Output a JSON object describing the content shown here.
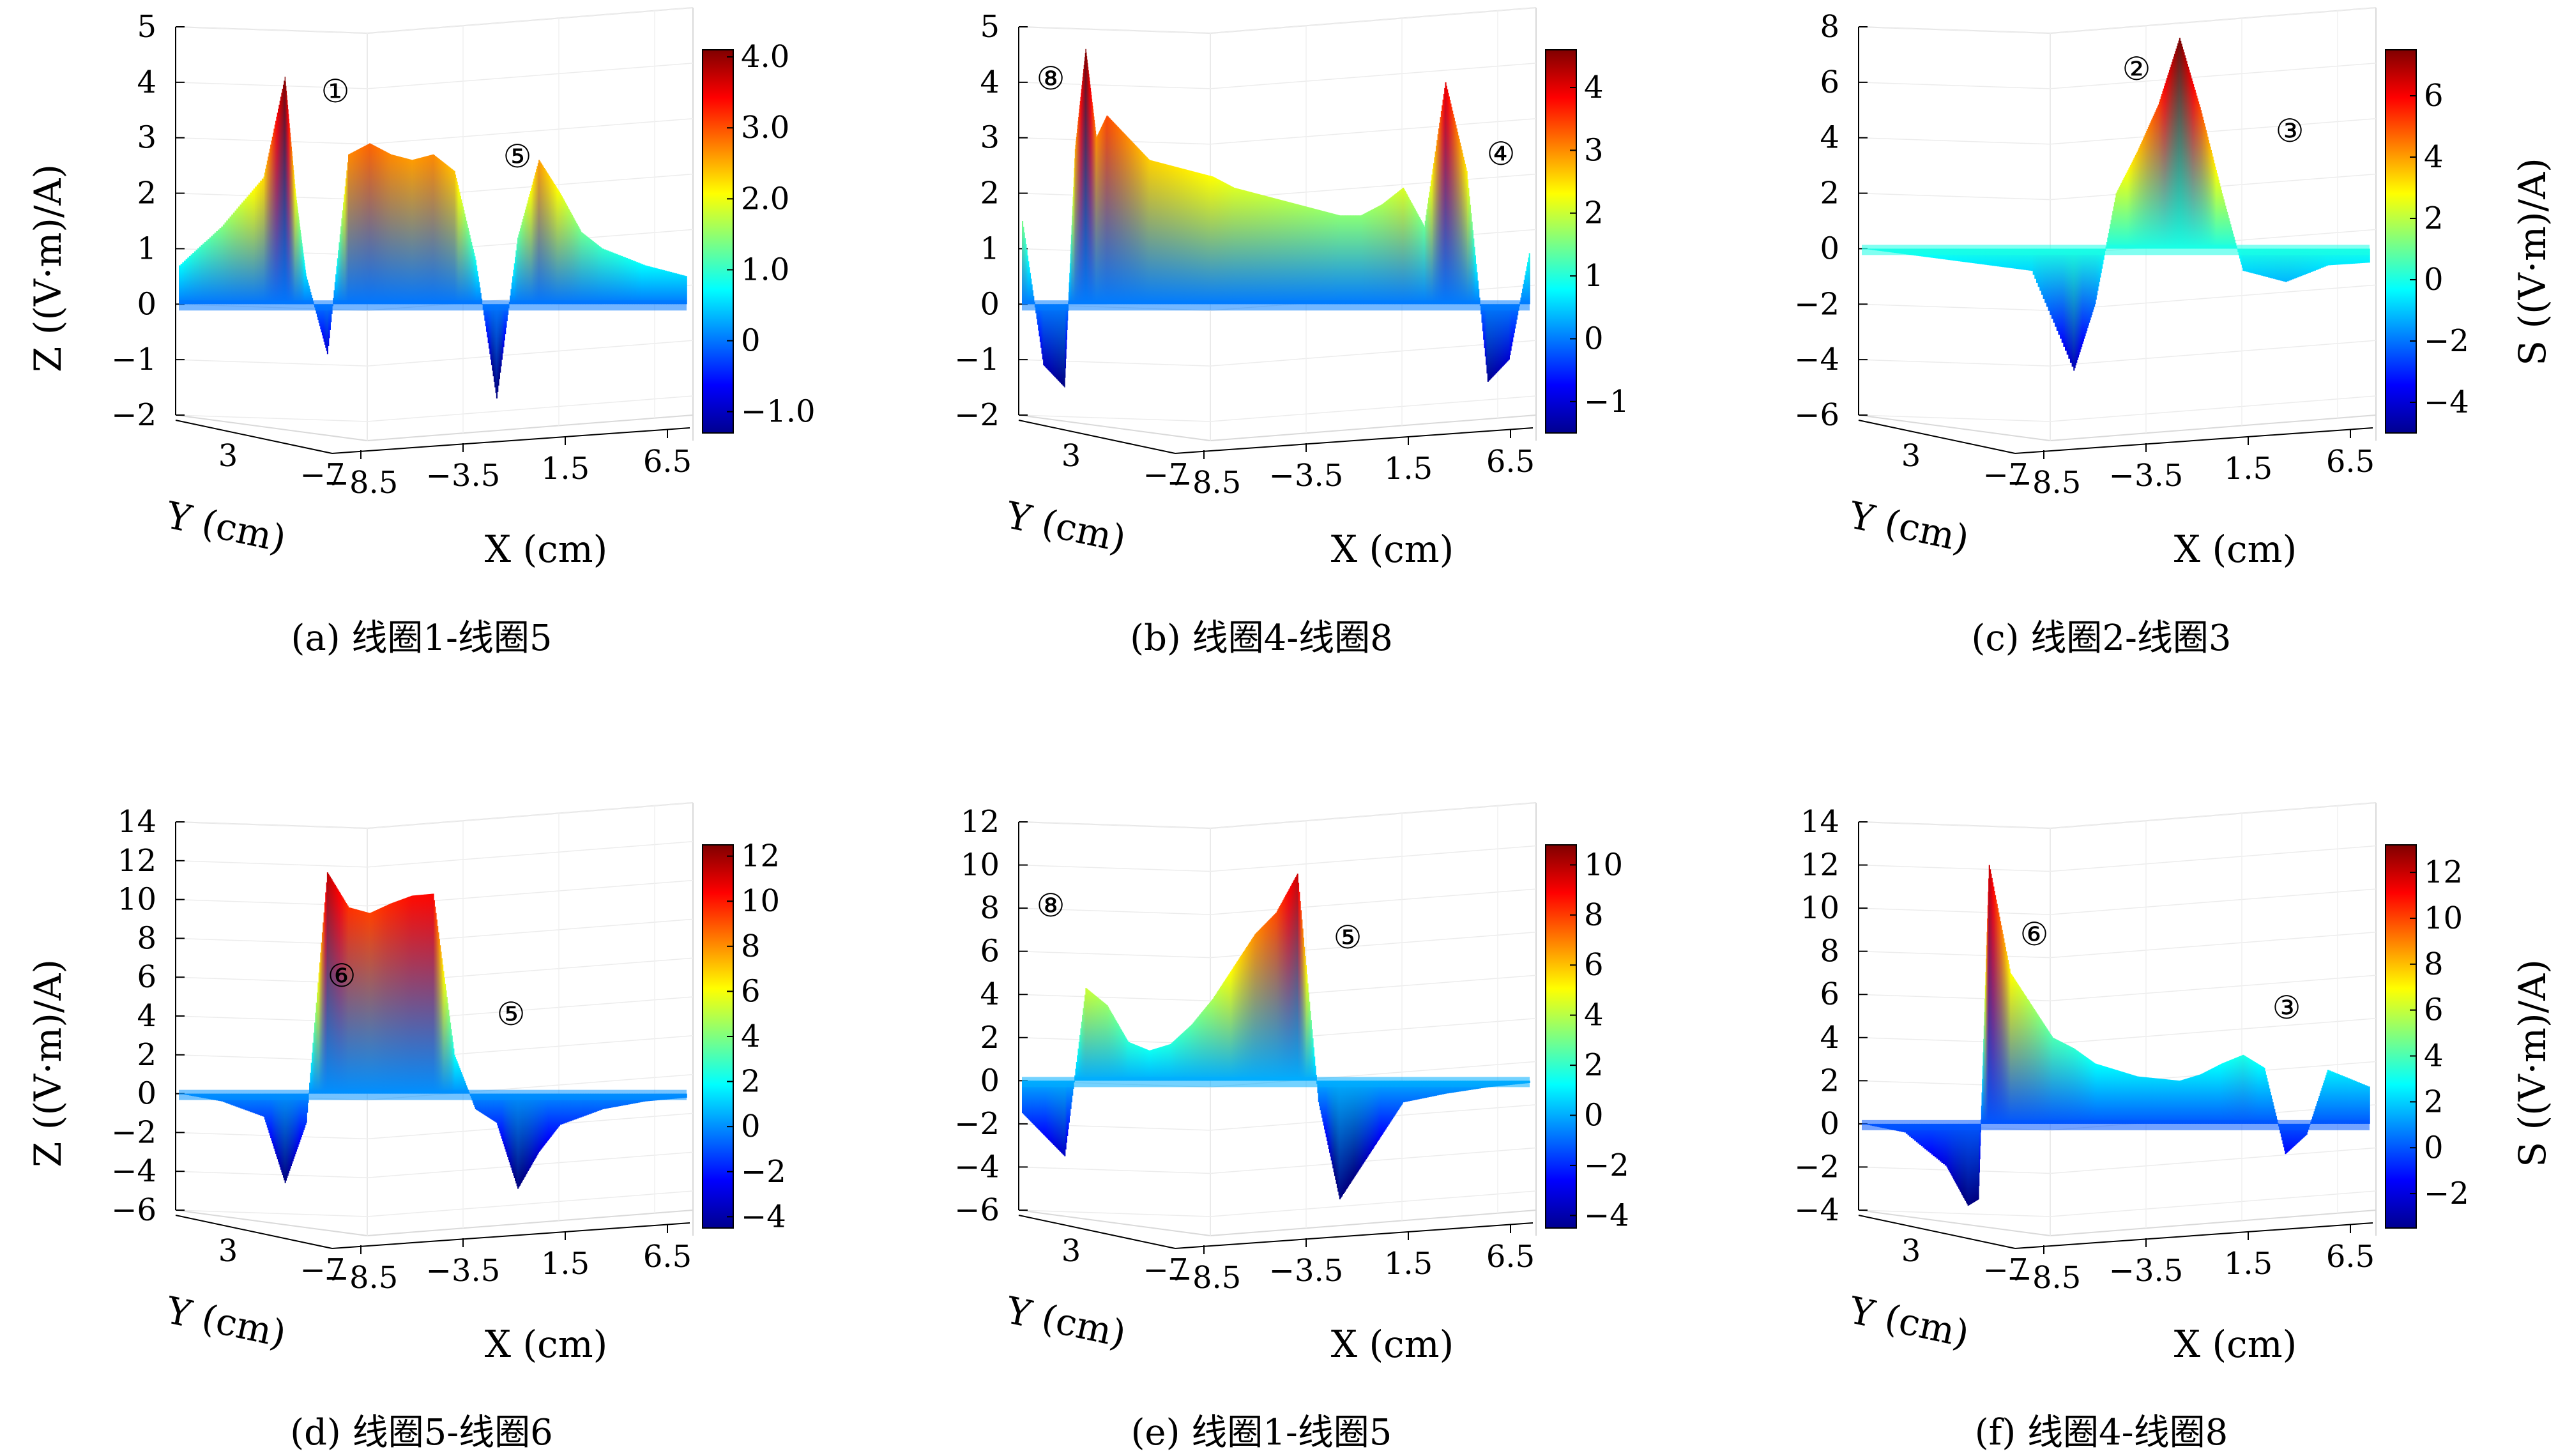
{
  "figure": {
    "panels": [
      {
        "caption": "(a) 线圈1-线圈5",
        "zlabel": "Z ((V·m)/A)",
        "clabel": "",
        "xlabel": "X (cm)",
        "ylabel": "Y (cm)",
        "colorbar_ticks": [
          "4.0",
          "3.0",
          "2.0",
          "1.0",
          "0",
          "−1.0"
        ],
        "markers": [
          "①",
          "⑤"
        ]
      },
      {
        "caption": "(b) 线圈4-线圈8",
        "zlabel": "",
        "clabel": "",
        "xlabel": "X (cm)",
        "ylabel": "Y (cm)",
        "colorbar_ticks": [
          "4",
          "3",
          "2",
          "1",
          "0",
          "−1"
        ],
        "markers": [
          "⑧",
          "④"
        ]
      },
      {
        "caption": "(c) 线圈2-线圈3",
        "zlabel": "",
        "clabel": "S ((V·m)/A)",
        "xlabel": "X (cm)",
        "ylabel": "Y (cm)",
        "colorbar_ticks": [
          "6",
          "4",
          "2",
          "0",
          "−2",
          "−4"
        ],
        "markers": [
          "②",
          "③"
        ]
      },
      {
        "caption": "(d) 线圈5-线圈6",
        "zlabel": "Z ((V·m)/A)",
        "clabel": "",
        "xlabel": "X (cm)",
        "ylabel": "Y (cm)",
        "colorbar_ticks": [
          "12",
          "10",
          "8",
          "6",
          "4",
          "2",
          "0",
          "−2",
          "−4"
        ],
        "markers": [
          "⑥",
          "⑤"
        ]
      },
      {
        "caption": "(e) 线圈1-线圈5",
        "zlabel": "",
        "clabel": "",
        "xlabel": "X (cm)",
        "ylabel": "Y (cm)",
        "colorbar_ticks": [
          "10",
          "8",
          "6",
          "4",
          "2",
          "0",
          "−2",
          "−4"
        ],
        "markers": [
          "⑧",
          "⑤"
        ]
      },
      {
        "caption": "(f) 线圈4-线圈8",
        "zlabel": "",
        "clabel": "S ((V·m)/A)",
        "xlabel": "X (cm)",
        "ylabel": "Y (cm)",
        "colorbar_ticks": [
          "12",
          "10",
          "8",
          "6",
          "4",
          "2",
          "0",
          "−2"
        ],
        "markers": [
          "⑥",
          "③"
        ]
      }
    ]
  },
  "chart_data": [
    {
      "type": "surface3d",
      "title": "(a) 线圈1-线圈5",
      "xlabel": "X (cm)",
      "ylabel": "Y (cm)",
      "zlabel": "Z ((V·m)/A)",
      "x_ticks": [
        "-8.5",
        "-3.5",
        "1.5",
        "6.5"
      ],
      "y_ticks": [
        "3",
        "-7"
      ],
      "z_ticks": [
        "5",
        "4",
        "3",
        "2",
        "1",
        "0",
        "-1",
        "-2"
      ],
      "zlim": [
        -2,
        5
      ],
      "colorbar": {
        "min": -1.3,
        "max": 4.1,
        "ticks": [
          4.0,
          3.0,
          2.0,
          1.0,
          0,
          -1.0
        ]
      },
      "profile_x": [
        -12,
        -10,
        -8,
        -7,
        -6.5,
        -6,
        -5,
        -4,
        -3,
        -2,
        -1,
        0,
        1,
        2,
        3,
        4,
        5,
        6,
        7,
        8,
        10,
        12
      ],
      "profile_z": [
        0.7,
        1.4,
        2.3,
        4.1,
        2.0,
        0.5,
        -0.9,
        2.7,
        2.9,
        2.7,
        2.6,
        2.7,
        2.4,
        0.8,
        -1.7,
        1.2,
        2.6,
        2.0,
        1.3,
        1.0,
        0.7,
        0.5
      ]
    },
    {
      "type": "surface3d",
      "title": "(b) 线圈4-线圈8",
      "xlabel": "X (cm)",
      "ylabel": "Y (cm)",
      "zlabel": "",
      "x_ticks": [
        "-8.5",
        "-3.5",
        "1.5",
        "6.5"
      ],
      "y_ticks": [
        "3",
        "-7"
      ],
      "z_ticks": [
        "5",
        "4",
        "3",
        "2",
        "1",
        "0",
        "-1",
        "-2"
      ],
      "zlim": [
        -2,
        5
      ],
      "colorbar": {
        "min": -1.5,
        "max": 4.6,
        "ticks": [
          4,
          3,
          2,
          1,
          0,
          -1
        ]
      },
      "profile_x": [
        -12,
        -11,
        -10,
        -9.5,
        -9,
        -8.5,
        -8,
        -7,
        -6,
        -5,
        -4,
        -3,
        -2,
        -1,
        0,
        1,
        2,
        3,
        4,
        5,
        6,
        7,
        8,
        9,
        10,
        11,
        12
      ],
      "profile_z": [
        1.5,
        -1.1,
        -1.5,
        2.8,
        4.6,
        3.0,
        3.4,
        3.0,
        2.6,
        2.5,
        2.4,
        2.3,
        2.1,
        2.0,
        1.9,
        1.8,
        1.7,
        1.6,
        1.6,
        1.8,
        2.1,
        1.4,
        4.0,
        2.4,
        -1.4,
        -1.0,
        1.0
      ]
    },
    {
      "type": "surface3d",
      "title": "(c) 线圈2-线圈3",
      "xlabel": "X (cm)",
      "ylabel": "Y (cm)",
      "zlabel": "S ((V·m)/A)",
      "x_ticks": [
        "-8.5",
        "-3.5",
        "1.5",
        "6.5"
      ],
      "y_ticks": [
        "3",
        "-7"
      ],
      "z_ticks": [
        "8",
        "6",
        "4",
        "2",
        "0",
        "-2",
        "-4",
        "-6"
      ],
      "zlim": [
        -6,
        8
      ],
      "colorbar": {
        "min": -5,
        "max": 7.5,
        "ticks": [
          6,
          4,
          2,
          0,
          -2,
          -4
        ]
      },
      "profile_x": [
        -12,
        -10,
        -8,
        -6,
        -4,
        -2,
        -1,
        0,
        1,
        2,
        3,
        4,
        5,
        6,
        8,
        10,
        12
      ],
      "profile_z": [
        0,
        -0.2,
        -0.4,
        -0.6,
        -0.8,
        -4.4,
        -2.0,
        2.0,
        3.5,
        5.2,
        7.6,
        5.0,
        2.0,
        -0.8,
        -1.2,
        -0.6,
        -0.5
      ]
    },
    {
      "type": "surface3d",
      "title": "(d) 线圈5-线圈6",
      "xlabel": "X (cm)",
      "ylabel": "Y (cm)",
      "zlabel": "Z ((V·m)/A)",
      "x_ticks": [
        "-8.5",
        "-3.5",
        "1.5",
        "6.5"
      ],
      "y_ticks": [
        "3",
        "-7"
      ],
      "z_ticks": [
        "14",
        "12",
        "10",
        "8",
        "6",
        "4",
        "2",
        "0",
        "-2",
        "-4",
        "-6"
      ],
      "zlim": [
        -6,
        14
      ],
      "colorbar": {
        "min": -4.5,
        "max": 12.5,
        "ticks": [
          12,
          10,
          8,
          6,
          4,
          2,
          0,
          -2,
          -4
        ]
      },
      "profile_x": [
        -12,
        -10,
        -8,
        -7,
        -6,
        -5,
        -4,
        -3,
        -2,
        -1,
        0,
        1,
        2,
        3,
        4,
        5,
        6,
        8,
        10,
        12
      ],
      "profile_z": [
        0,
        -0.4,
        -1.2,
        -4.6,
        -1.5,
        11.4,
        9.6,
        9.3,
        9.8,
        10.2,
        10.3,
        2.0,
        -0.8,
        -1.5,
        -4.9,
        -3.0,
        -1.6,
        -0.8,
        -0.4,
        -0.2
      ]
    },
    {
      "type": "surface3d",
      "title": "(e) 线圈1-线圈5",
      "xlabel": "X (cm)",
      "ylabel": "Y (cm)",
      "zlabel": "",
      "x_ticks": [
        "-8.5",
        "-3.5",
        "1.5",
        "6.5"
      ],
      "y_ticks": [
        "3",
        "-7"
      ],
      "z_ticks": [
        "12",
        "10",
        "8",
        "6",
        "4",
        "2",
        "0",
        "-2",
        "-4",
        "-6"
      ],
      "zlim": [
        -6,
        12
      ],
      "colorbar": {
        "min": -4.5,
        "max": 10.8,
        "ticks": [
          10,
          8,
          6,
          4,
          2,
          0,
          -2,
          -4
        ]
      },
      "profile_x": [
        -12,
        -11,
        -10,
        -9,
        -8,
        -7,
        -6,
        -5,
        -4,
        -3,
        -2,
        -1,
        0,
        1,
        2,
        3,
        4,
        5,
        6,
        8,
        10,
        12
      ],
      "profile_z": [
        -1.5,
        -2.5,
        -3.5,
        4.3,
        3.5,
        1.8,
        1.4,
        1.7,
        2.6,
        3.8,
        5.3,
        6.8,
        7.8,
        9.6,
        -1.0,
        -5.5,
        -4.0,
        -2.5,
        -1.0,
        -0.6,
        -0.3,
        -0.1
      ]
    },
    {
      "type": "surface3d",
      "title": "(f) 线圈4-线圈8",
      "xlabel": "X (cm)",
      "ylabel": "Y (cm)",
      "zlabel": "S ((V·m)/A)",
      "x_ticks": [
        "-8.5",
        "-3.5",
        "1.5",
        "6.5"
      ],
      "y_ticks": [
        "3",
        "-7"
      ],
      "z_ticks": [
        "14",
        "12",
        "10",
        "8",
        "6",
        "4",
        "2",
        "0",
        "-2",
        "-4"
      ],
      "zlim": [
        -4,
        14
      ],
      "colorbar": {
        "min": -3.5,
        "max": 13.2,
        "ticks": [
          12,
          10,
          8,
          6,
          4,
          2,
          0,
          -2
        ]
      },
      "profile_x": [
        -12,
        -10,
        -8,
        -7,
        -6.5,
        -6,
        -5,
        -4,
        -3,
        -2,
        -1,
        0,
        1,
        2,
        3,
        4,
        5,
        6,
        7,
        8,
        9,
        10,
        12
      ],
      "profile_z": [
        0,
        -0.4,
        -2.0,
        -3.8,
        -3.5,
        12.0,
        7.0,
        5.5,
        4.0,
        3.5,
        2.8,
        2.5,
        2.2,
        2.1,
        2.0,
        2.3,
        2.8,
        3.2,
        2.6,
        -1.4,
        -0.5,
        2.5,
        1.7
      ]
    }
  ]
}
